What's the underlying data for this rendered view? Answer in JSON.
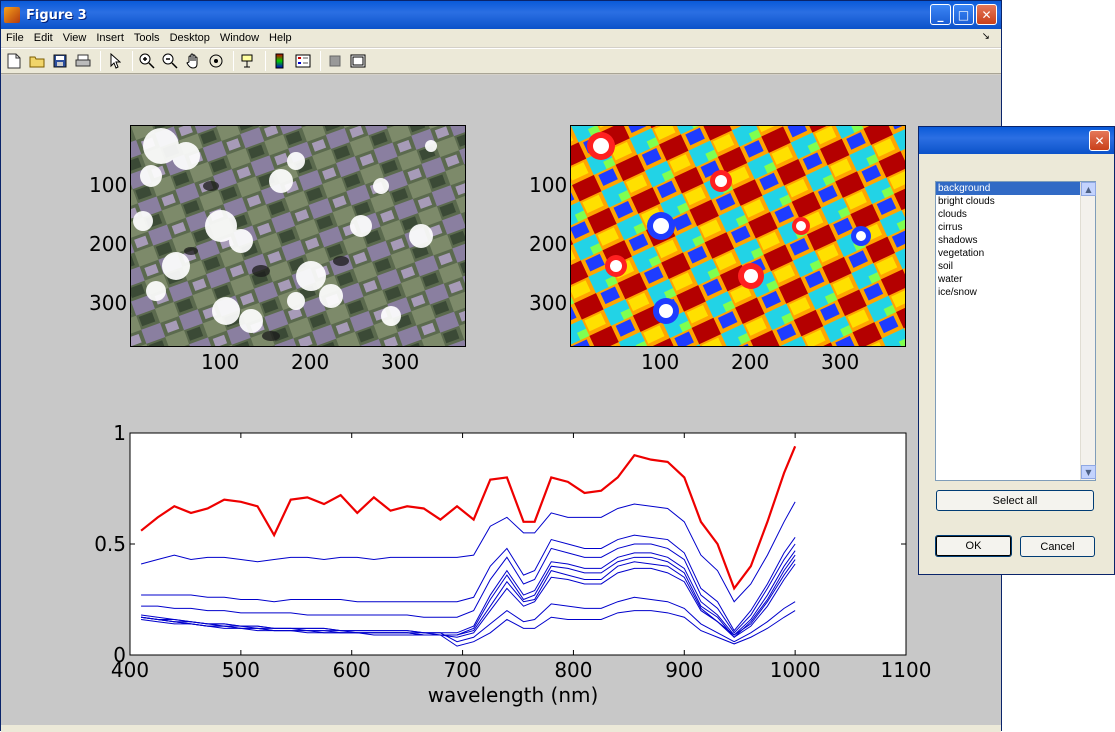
{
  "window": {
    "title": "Figure 3",
    "min_glyph": "_",
    "max_glyph": "□",
    "close_glyph": "✕"
  },
  "menubar": {
    "items": [
      "File",
      "Edit",
      "View",
      "Insert",
      "Tools",
      "Desktop",
      "Window",
      "Help"
    ],
    "arrow": "↘"
  },
  "toolbar": {
    "icons": [
      "new-file-icon",
      "open-folder-icon",
      "save-icon",
      "print-icon",
      "pointer-icon",
      "zoom-in-icon",
      "zoom-out-icon",
      "pan-hand-icon",
      "rotate-3d-icon",
      "data-cursor-icon",
      "colorbar-icon",
      "legend-icon",
      "hide-plot-tools-icon",
      "show-plot-tools-icon"
    ]
  },
  "top_left_axes": {
    "yticks": [
      "100",
      "200",
      "300"
    ],
    "xticks": [
      "100",
      "200",
      "300"
    ]
  },
  "top_right_axes": {
    "yticks": [
      "100",
      "200",
      "300"
    ],
    "xticks": [
      "100",
      "200",
      "300"
    ]
  },
  "chart_data": {
    "type": "line",
    "xlabel": "wavelength (nm)",
    "ylabel": "",
    "xlim": [
      400,
      1100
    ],
    "ylim": [
      0,
      1
    ],
    "xticks": [
      "400",
      "500",
      "600",
      "700",
      "800",
      "900",
      "1000",
      "1100"
    ],
    "yticks": [
      "0",
      "0.5",
      "1"
    ],
    "colors": {
      "highlight": "#ee0000",
      "others": "#0000cc"
    },
    "x": [
      410,
      425,
      440,
      455,
      470,
      485,
      500,
      515,
      530,
      545,
      560,
      575,
      590,
      605,
      620,
      635,
      650,
      665,
      680,
      695,
      710,
      725,
      740,
      755,
      765,
      780,
      795,
      810,
      825,
      840,
      855,
      870,
      885,
      900,
      915,
      930,
      945,
      960,
      975,
      990,
      1000
    ],
    "series": [
      {
        "values": [
          0.56,
          0.62,
          0.67,
          0.64,
          0.66,
          0.7,
          0.69,
          0.67,
          0.54,
          0.7,
          0.71,
          0.68,
          0.72,
          0.64,
          0.71,
          0.65,
          0.67,
          0.66,
          0.61,
          0.67,
          0.61,
          0.79,
          0.8,
          0.6,
          0.6,
          0.8,
          0.78,
          0.73,
          0.74,
          0.8,
          0.9,
          0.88,
          0.87,
          0.8,
          0.6,
          0.5,
          0.3,
          0.4,
          0.6,
          0.82,
          0.94
        ]
      },
      {
        "values": [
          0.41,
          0.43,
          0.45,
          0.43,
          0.44,
          0.44,
          0.43,
          0.42,
          0.43,
          0.44,
          0.44,
          0.43,
          0.44,
          0.44,
          0.43,
          0.44,
          0.44,
          0.44,
          0.44,
          0.44,
          0.45,
          0.58,
          0.62,
          0.55,
          0.55,
          0.64,
          0.62,
          0.62,
          0.62,
          0.66,
          0.68,
          0.67,
          0.66,
          0.6,
          0.45,
          0.38,
          0.24,
          0.32,
          0.45,
          0.6,
          0.69
        ]
      },
      {
        "values": [
          0.27,
          0.27,
          0.27,
          0.27,
          0.26,
          0.26,
          0.25,
          0.25,
          0.24,
          0.25,
          0.25,
          0.25,
          0.25,
          0.24,
          0.24,
          0.24,
          0.24,
          0.24,
          0.24,
          0.24,
          0.26,
          0.4,
          0.48,
          0.36,
          0.38,
          0.52,
          0.5,
          0.48,
          0.48,
          0.52,
          0.54,
          0.53,
          0.52,
          0.46,
          0.3,
          0.24,
          0.11,
          0.2,
          0.32,
          0.46,
          0.53
        ]
      },
      {
        "values": [
          0.22,
          0.22,
          0.21,
          0.21,
          0.2,
          0.2,
          0.19,
          0.19,
          0.19,
          0.19,
          0.18,
          0.18,
          0.18,
          0.18,
          0.18,
          0.18,
          0.18,
          0.17,
          0.17,
          0.17,
          0.2,
          0.34,
          0.44,
          0.32,
          0.34,
          0.48,
          0.46,
          0.44,
          0.44,
          0.48,
          0.5,
          0.5,
          0.48,
          0.43,
          0.27,
          0.21,
          0.1,
          0.18,
          0.3,
          0.43,
          0.5
        ]
      },
      {
        "values": [
          0.18,
          0.17,
          0.16,
          0.15,
          0.14,
          0.14,
          0.13,
          0.13,
          0.12,
          0.12,
          0.12,
          0.12,
          0.11,
          0.11,
          0.11,
          0.11,
          0.11,
          0.1,
          0.1,
          0.1,
          0.13,
          0.27,
          0.38,
          0.27,
          0.29,
          0.42,
          0.41,
          0.39,
          0.39,
          0.44,
          0.46,
          0.46,
          0.44,
          0.39,
          0.24,
          0.18,
          0.09,
          0.16,
          0.27,
          0.4,
          0.47
        ]
      },
      {
        "values": [
          0.17,
          0.16,
          0.15,
          0.14,
          0.13,
          0.13,
          0.12,
          0.12,
          0.11,
          0.11,
          0.11,
          0.11,
          0.1,
          0.1,
          0.1,
          0.1,
          0.1,
          0.09,
          0.09,
          0.09,
          0.12,
          0.25,
          0.36,
          0.25,
          0.27,
          0.4,
          0.39,
          0.37,
          0.37,
          0.42,
          0.44,
          0.44,
          0.42,
          0.37,
          0.22,
          0.17,
          0.08,
          0.15,
          0.25,
          0.38,
          0.45
        ]
      },
      {
        "values": [
          0.17,
          0.16,
          0.15,
          0.14,
          0.13,
          0.13,
          0.12,
          0.12,
          0.11,
          0.11,
          0.11,
          0.1,
          0.1,
          0.1,
          0.1,
          0.1,
          0.1,
          0.09,
          0.09,
          0.09,
          0.11,
          0.22,
          0.33,
          0.24,
          0.25,
          0.38,
          0.36,
          0.34,
          0.34,
          0.4,
          0.42,
          0.41,
          0.4,
          0.35,
          0.21,
          0.15,
          0.09,
          0.14,
          0.24,
          0.36,
          0.43
        ]
      },
      {
        "values": [
          0.16,
          0.15,
          0.14,
          0.14,
          0.13,
          0.12,
          0.12,
          0.11,
          0.11,
          0.11,
          0.1,
          0.1,
          0.1,
          0.1,
          0.09,
          0.09,
          0.09,
          0.09,
          0.09,
          0.08,
          0.1,
          0.2,
          0.3,
          0.22,
          0.24,
          0.35,
          0.34,
          0.32,
          0.32,
          0.37,
          0.39,
          0.39,
          0.37,
          0.33,
          0.2,
          0.15,
          0.08,
          0.13,
          0.22,
          0.34,
          0.41
        ]
      },
      {
        "values": [
          0.17,
          0.16,
          0.16,
          0.15,
          0.14,
          0.14,
          0.13,
          0.13,
          0.12,
          0.12,
          0.12,
          0.12,
          0.11,
          0.11,
          0.11,
          0.11,
          0.11,
          0.1,
          0.1,
          0.06,
          0.08,
          0.14,
          0.2,
          0.15,
          0.16,
          0.23,
          0.22,
          0.21,
          0.21,
          0.24,
          0.26,
          0.25,
          0.24,
          0.21,
          0.14,
          0.1,
          0.06,
          0.1,
          0.15,
          0.21,
          0.24
        ]
      },
      {
        "values": [
          0.17,
          0.16,
          0.15,
          0.15,
          0.14,
          0.13,
          0.13,
          0.12,
          0.12,
          0.12,
          0.11,
          0.11,
          0.11,
          0.1,
          0.1,
          0.1,
          0.1,
          0.1,
          0.09,
          0.04,
          0.06,
          0.1,
          0.16,
          0.12,
          0.12,
          0.17,
          0.16,
          0.16,
          0.16,
          0.19,
          0.2,
          0.2,
          0.19,
          0.17,
          0.11,
          0.08,
          0.05,
          0.08,
          0.12,
          0.17,
          0.2
        ]
      }
    ]
  },
  "dialog": {
    "close_glyph": "✕",
    "list_items": [
      "background",
      "bright clouds",
      "clouds",
      "cirrus",
      "shadows",
      "vegetation",
      "soil",
      "water",
      "ice/snow"
    ],
    "selected_index": 0,
    "select_all_label": "Select all",
    "ok_label": "OK",
    "cancel_label": "Cancel",
    "scroll_up": "▲",
    "scroll_down": "▼"
  }
}
